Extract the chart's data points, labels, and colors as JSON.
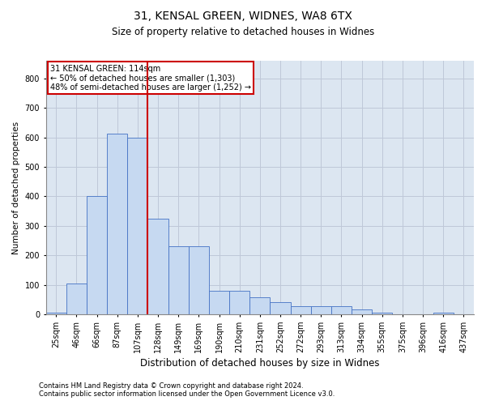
{
  "title1": "31, KENSAL GREEN, WIDNES, WA8 6TX",
  "title2": "Size of property relative to detached houses in Widnes",
  "xlabel": "Distribution of detached houses by size in Widnes",
  "ylabel": "Number of detached properties",
  "footnote1": "Contains HM Land Registry data © Crown copyright and database right 2024.",
  "footnote2": "Contains public sector information licensed under the Open Government Licence v3.0.",
  "annotation_line1": "31 KENSAL GREEN: 114sqm",
  "annotation_line2": "← 50% of detached houses are smaller (1,303)",
  "annotation_line3": "48% of semi-detached houses are larger (1,252) →",
  "bar_labels": [
    "25sqm",
    "46sqm",
    "66sqm",
    "87sqm",
    "107sqm",
    "128sqm",
    "149sqm",
    "169sqm",
    "190sqm",
    "210sqm",
    "231sqm",
    "252sqm",
    "272sqm",
    "293sqm",
    "313sqm",
    "334sqm",
    "355sqm",
    "375sqm",
    "396sqm",
    "416sqm",
    "437sqm"
  ],
  "bar_values": [
    5,
    103,
    400,
    614,
    600,
    325,
    230,
    230,
    80,
    80,
    57,
    40,
    27,
    27,
    27,
    16,
    5,
    0,
    0,
    5,
    0
  ],
  "bar_color": "#c6d9f1",
  "bar_edge_color": "#4472c4",
  "vline_x": 4.5,
  "vline_color": "#cc0000",
  "annotation_box_color": "#cc0000",
  "ylim": [
    0,
    860
  ],
  "yticks": [
    0,
    100,
    200,
    300,
    400,
    500,
    600,
    700,
    800
  ],
  "grid_color": "#bfc8d8",
  "bg_color": "#dce6f1",
  "title1_fontsize": 10,
  "title2_fontsize": 8.5,
  "ylabel_fontsize": 7.5,
  "xlabel_fontsize": 8.5,
  "tick_fontsize": 7,
  "annot_fontsize": 7,
  "footnote_fontsize": 6
}
